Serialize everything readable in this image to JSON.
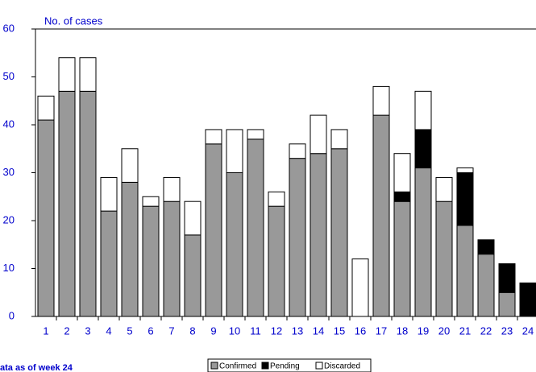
{
  "chart_data": {
    "type": "stacked_bar",
    "title": "No. of cases",
    "footnote": "ata as of week 24",
    "categories": [
      "1",
      "2",
      "3",
      "4",
      "5",
      "6",
      "7",
      "8",
      "9",
      "10",
      "11",
      "12",
      "13",
      "14",
      "15",
      "16",
      "17",
      "18",
      "19",
      "20",
      "21",
      "22",
      "23",
      "24"
    ],
    "series": [
      {
        "name": "Confirmed",
        "color": "#999999",
        "values": [
          41,
          47,
          47,
          22,
          28,
          23,
          24,
          17,
          36,
          30,
          37,
          23,
          33,
          34,
          35,
          0,
          42,
          24,
          31,
          24,
          19,
          13,
          5,
          0
        ]
      },
      {
        "name": "Pending",
        "color": "#000000",
        "values": [
          0,
          0,
          0,
          0,
          0,
          0,
          0,
          0,
          0,
          0,
          0,
          0,
          0,
          0,
          0,
          0,
          0,
          2,
          8,
          0,
          11,
          3,
          6,
          7
        ]
      },
      {
        "name": "Discarded",
        "color": "#ffffff",
        "values": [
          5,
          7,
          7,
          7,
          7,
          2,
          5,
          7,
          3,
          9,
          2,
          3,
          3,
          8,
          4,
          12,
          6,
          8,
          8,
          5,
          1,
          0,
          0,
          0
        ]
      }
    ],
    "ylim": [
      0,
      60
    ],
    "yticks": [
      0,
      10,
      20,
      30,
      40,
      50,
      60
    ],
    "grid": false
  }
}
